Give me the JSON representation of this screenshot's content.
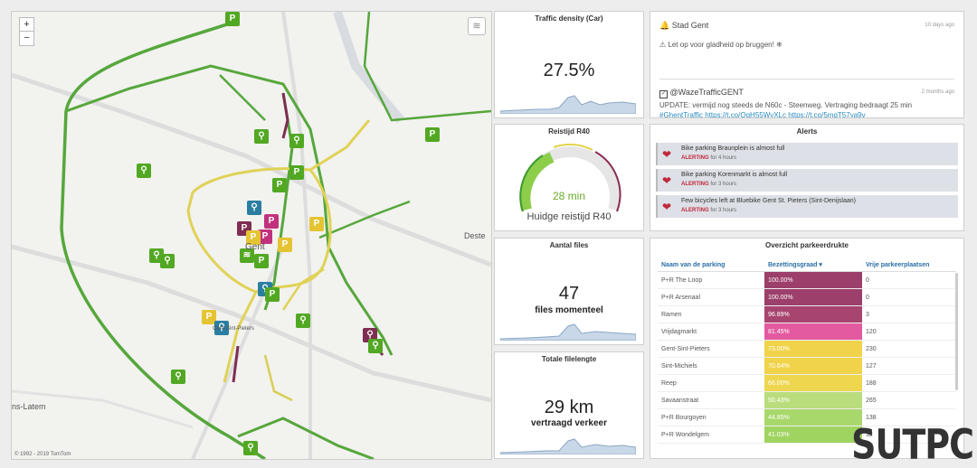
{
  "map": {
    "zoom_in": "+",
    "zoom_out": "−",
    "labels": [
      "Gent",
      "Deste",
      "ns-Latem",
      "Gent-Sint-Pieters"
    ],
    "copyright": "© 1992 - 2019 TomTom"
  },
  "traffic_density": {
    "title": "Traffic density (Car)",
    "value": "27.5%"
  },
  "reistijd": {
    "title": "Reistijd R40",
    "value": "28 min",
    "caption": "Huidge reistijd R40"
  },
  "files": {
    "title": "Aantal files",
    "value": "47",
    "caption": "files momenteel"
  },
  "filelengte": {
    "title": "Totale filelengte",
    "value": "29 km",
    "caption": "vertraagd verkeer"
  },
  "feed": {
    "items": [
      {
        "author": "Stad Gent",
        "time": "10 days ago",
        "text": "⚠ Let op voor gladheid op bruggen! ❄"
      },
      {
        "author": "@WazeTrafficGENT",
        "time": "2 months ago",
        "text": "UPDATE: vermijd nog steeds de N60c - Steenweg. Vertraging bedraagt 25 min",
        "link": "#GhentTraffic https://t.co/QgH55WyXLc https://t.co/5mqT57ya9v"
      }
    ]
  },
  "alerts": {
    "title": "Alerts",
    "status_label": "ALERTING",
    "items": [
      {
        "title": "Bike parking Braunplein is almost full",
        "duration": "for 4 hours"
      },
      {
        "title": "Bike parking Korenmarkt is almost full",
        "duration": "for 3 hours"
      },
      {
        "title": "Few bicycles left at Bluebike Gent St. Pieters (Sint-Denijslaan)",
        "duration": "for 3 hours"
      }
    ]
  },
  "parking": {
    "title": "Overzicht parkeerdrukte",
    "columns": [
      "Naam van de parking",
      "Bezettingsgraad ▾",
      "Vrije parkeerplaatsen"
    ],
    "rows": [
      {
        "name": "P+R The Loop",
        "pct": "100.00%",
        "free": "0",
        "color": "#9c3f6b"
      },
      {
        "name": "P+R Arsenaal",
        "pct": "100.00%",
        "free": "0",
        "color": "#9c3f6b"
      },
      {
        "name": "Ramen",
        "pct": "96.89%",
        "free": "3",
        "color": "#a8456f"
      },
      {
        "name": "Vrijdagmarkt",
        "pct": "81.45%",
        "free": "120",
        "color": "#e45aa0"
      },
      {
        "name": "Gent-Sint-Pieters",
        "pct": "73.00%",
        "free": "230",
        "color": "#f0d34a"
      },
      {
        "name": "Sint-Michiels",
        "pct": "70.64%",
        "free": "127",
        "color": "#f0d34a"
      },
      {
        "name": "Reep",
        "pct": "66.00%",
        "free": "188",
        "color": "#eed64e"
      },
      {
        "name": "Savaanstraat",
        "pct": "50.43%",
        "free": "265",
        "color": "#b9dd7c"
      },
      {
        "name": "P+R Bourgoyen",
        "pct": "44.85%",
        "free": "138",
        "color": "#a8d86b"
      },
      {
        "name": "P+R Wondelgem",
        "pct": "41.03%",
        "free": "32",
        "color": "#9fd460"
      }
    ]
  },
  "watermark": "SUTPC",
  "colors": {
    "green": "#52a823",
    "yellow": "#e5c434",
    "purple": "#7d2e52",
    "pink": "#c1327c",
    "spark": "#9fb6cf"
  }
}
